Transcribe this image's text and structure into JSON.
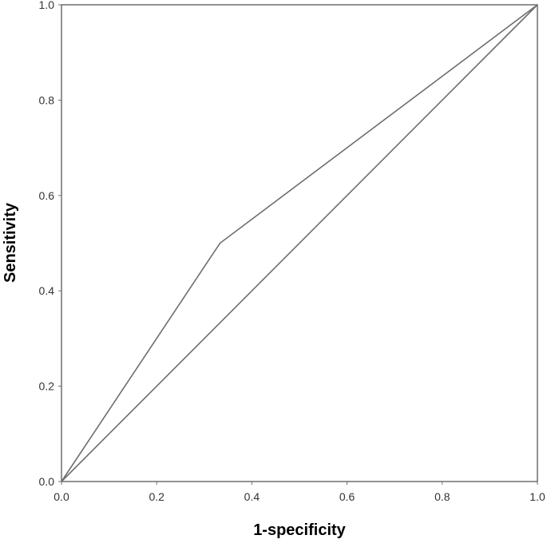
{
  "chart_data": {
    "type": "line",
    "title": "",
    "xlabel": "1-specificity",
    "ylabel": "Sensitivity",
    "xlim": [
      0,
      1
    ],
    "ylim": [
      0,
      1
    ],
    "grid": false,
    "x_ticks": [
      "0.0",
      "0.2",
      "0.4",
      "0.6",
      "0.8",
      "1.0"
    ],
    "y_ticks": [
      "0.0",
      "0.2",
      "0.4",
      "0.6",
      "0.8",
      "1.0"
    ],
    "series": [
      {
        "x": [
          0.0,
          0.333,
          1.0
        ],
        "y": [
          0.0,
          0.5,
          1.0
        ]
      },
      {
        "x": [
          0.0,
          1.0
        ],
        "y": [
          0.0,
          1.0
        ]
      }
    ],
    "colors": {
      "line": "#6e6e6e",
      "frame": "#6e6e6e",
      "text": "#333333"
    }
  }
}
